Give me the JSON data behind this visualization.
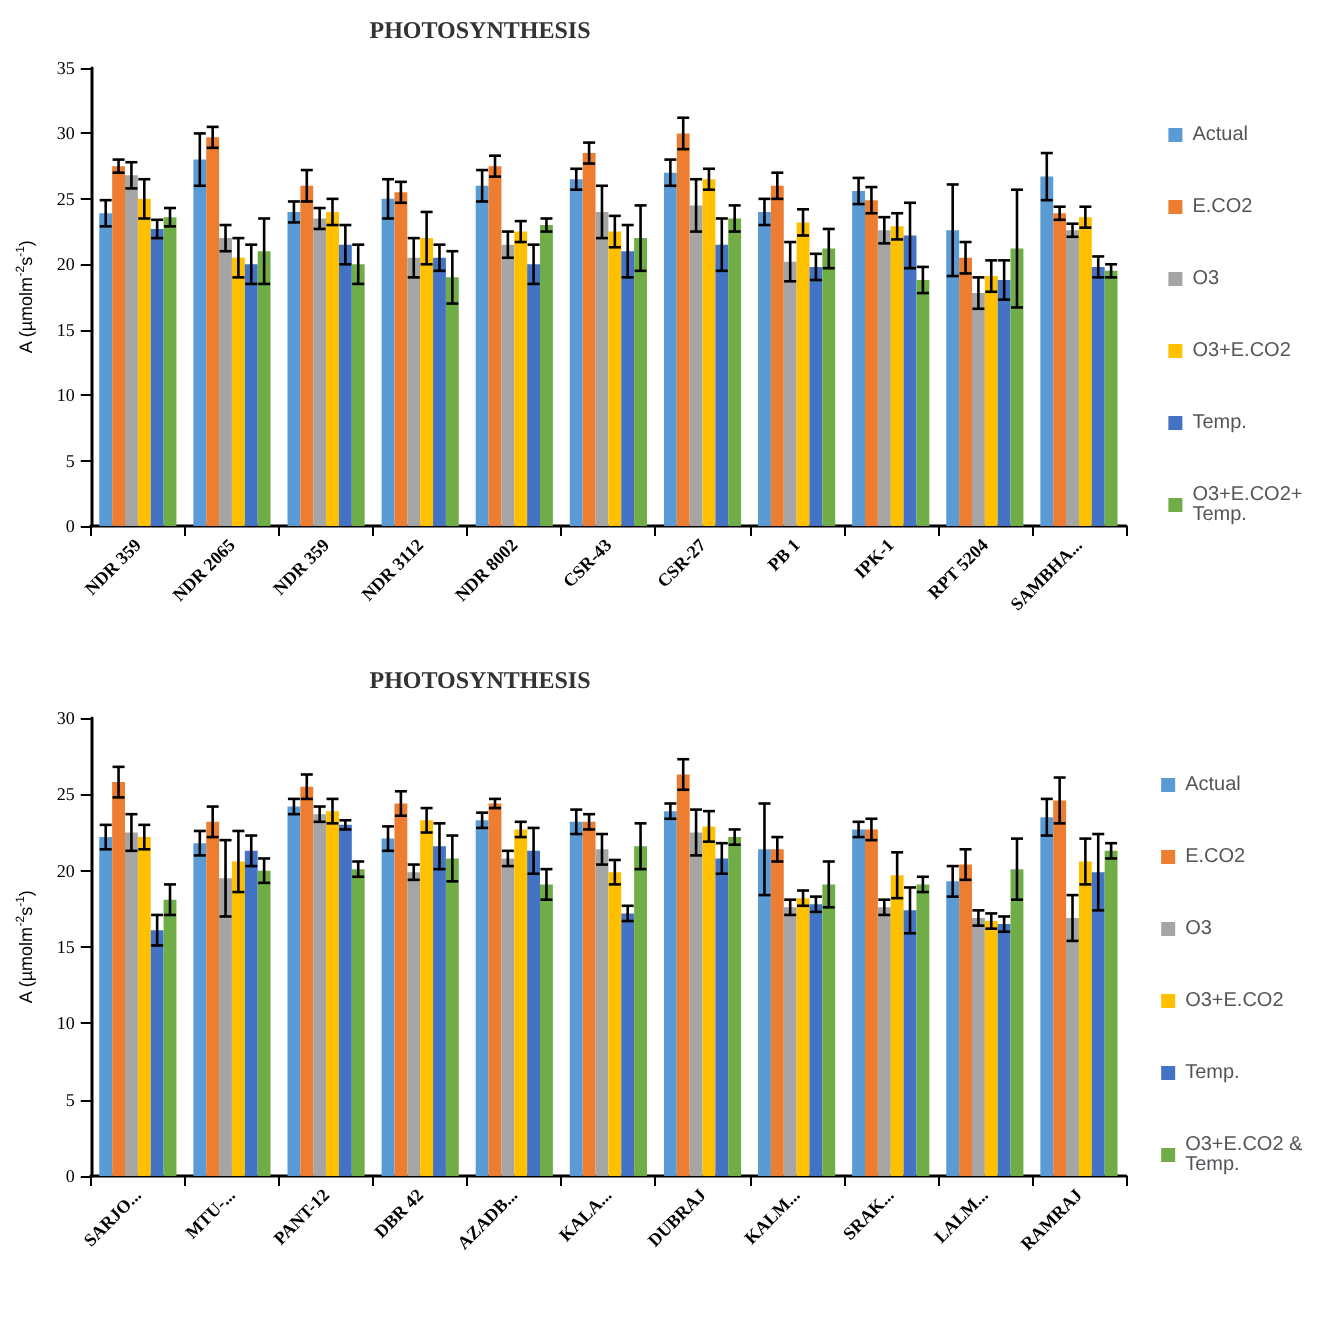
{
  "chart_data": [
    {
      "type": "bar",
      "title": "PHOTOSYNTHESIS",
      "ylabel": "A (µmolm$^{-2}$s$^{-1}$)",
      "categories": [
        "NDR 359",
        "NDR 2065",
        "NDR 359",
        "NDR 3112",
        "NDR 8002",
        "CSR-43",
        "CSR-27",
        "PB 1",
        "IPK-1",
        "RPT 5204",
        "SAMBHA..."
      ],
      "ylim": [
        0,
        35
      ],
      "yticks": [
        0,
        5,
        10,
        15,
        20,
        25,
        30,
        35
      ],
      "grid": false,
      "legend": "right",
      "series": [
        {
          "name": "Actual",
          "color": "#5b9bd5",
          "values": [
            23.9,
            28,
            24,
            25,
            26,
            26.5,
            27,
            24,
            25.6,
            22.6,
            26.7
          ],
          "errors": [
            1,
            2,
            0.8,
            1.5,
            1.2,
            0.8,
            1,
            1,
            1,
            3.5,
            1.8
          ]
        },
        {
          "name": "E.CO2",
          "color": "#ed7d31",
          "values": [
            27.5,
            29.7,
            26,
            25.5,
            27.5,
            28.5,
            30,
            26,
            24.9,
            20.5,
            23.9
          ],
          "errors": [
            0.5,
            0.8,
            1.2,
            0.8,
            0.8,
            0.8,
            1.2,
            1,
            1,
            1.2,
            0.5
          ]
        },
        {
          "name": "O3",
          "color": "#a5a5a5",
          "values": [
            26.8,
            22,
            23.5,
            20.5,
            21.5,
            24,
            24.5,
            20.2,
            22.6,
            17.8,
            22.6
          ],
          "errors": [
            1,
            1,
            0.8,
            1.5,
            1,
            2,
            2,
            1.5,
            1,
            1.2,
            0.5
          ]
        },
        {
          "name": "O3+E.CO2",
          "color": "#ffc000",
          "values": [
            25,
            20.5,
            24,
            22,
            22.5,
            22.5,
            26.5,
            23.2,
            22.9,
            19.1,
            23.6
          ],
          "errors": [
            1.5,
            1.5,
            1,
            2,
            0.8,
            1.2,
            0.8,
            1,
            1,
            1.2,
            0.8
          ]
        },
        {
          "name": "Temp.",
          "color": "#4472c4",
          "values": [
            22.7,
            20,
            21.5,
            20.5,
            20,
            21,
            21.5,
            19.8,
            22.2,
            18.8,
            19.8
          ],
          "errors": [
            0.7,
            1.5,
            1.5,
            1,
            1.5,
            2,
            2,
            1,
            2.5,
            1.5,
            0.8
          ]
        },
        {
          "name": "O3+E.CO2+ Temp.",
          "color": "#70ad47",
          "values": [
            23.6,
            21,
            20,
            19,
            23,
            22,
            23.5,
            21.2,
            18.8,
            21.2,
            19.5
          ],
          "errors": [
            0.7,
            2.5,
            1.5,
            2,
            0.5,
            2.5,
            1,
            1.5,
            1,
            4.5,
            0.5
          ]
        }
      ]
    },
    {
      "type": "bar",
      "title": "PHOTOSYNTHESIS",
      "ylabel": "A (µmolm$^{-2}$s$^{-1}$)",
      "categories": [
        "SARJO...",
        "MTU-...",
        "PANT-12",
        "DBR 42",
        "AZADB...",
        "KALA...",
        "DUBRAJ",
        "KALM...",
        "SRAK...",
        "LALM...",
        "RAMRAJ"
      ],
      "ylim": [
        0,
        30
      ],
      "yticks": [
        0,
        5,
        10,
        15,
        20,
        25,
        30
      ],
      "grid": false,
      "legend": "right",
      "series": [
        {
          "name": "Actual",
          "color": "#5b9bd5",
          "values": [
            22.2,
            21.8,
            24.2,
            22.1,
            23.3,
            23.2,
            23.9,
            21.4,
            22.7,
            19.3,
            23.5
          ],
          "errors": [
            0.8,
            0.8,
            0.5,
            0.8,
            0.5,
            0.8,
            0.5,
            3,
            0.5,
            1,
            1.2
          ]
        },
        {
          "name": "E.CO2",
          "color": "#ed7d31",
          "values": [
            25.8,
            23.2,
            25.5,
            24.4,
            24.4,
            23.2,
            26.3,
            21.4,
            22.7,
            20.4,
            24.6
          ],
          "errors": [
            1,
            1,
            0.8,
            0.8,
            0.3,
            0.5,
            1,
            0.8,
            0.7,
            1,
            1.5
          ]
        },
        {
          "name": "O3",
          "color": "#a5a5a5",
          "values": [
            22.5,
            19.5,
            23.7,
            19.9,
            20.8,
            21.4,
            22.5,
            17.6,
            17.6,
            16.9,
            16.9
          ],
          "errors": [
            1.2,
            2.5,
            0.5,
            0.5,
            0.5,
            1,
            1.5,
            0.5,
            0.5,
            0.5,
            1.5
          ]
        },
        {
          "name": "O3+E.CO2",
          "color": "#ffc000",
          "values": [
            22.2,
            20.6,
            23.9,
            23.3,
            22.7,
            19.9,
            22.9,
            18.2,
            19.7,
            16.7,
            20.6
          ],
          "errors": [
            0.8,
            2,
            0.8,
            0.8,
            0.5,
            0.8,
            1,
            0.5,
            1.5,
            0.5,
            1.5
          ]
        },
        {
          "name": "Temp.",
          "color": "#4472c4",
          "values": [
            16.1,
            21.3,
            23,
            21.6,
            21.3,
            17.2,
            20.8,
            17.8,
            17.4,
            16.5,
            19.9
          ],
          "errors": [
            1,
            1,
            0.3,
            1.5,
            1.5,
            0.5,
            1,
            0.5,
            1.5,
            0.5,
            2.5
          ]
        },
        {
          "name": "O3+E.CO2 & Temp.",
          "color": "#70ad47",
          "values": [
            18.1,
            20,
            20.1,
            20.8,
            19.1,
            21.6,
            22.2,
            19.1,
            19.1,
            20.1,
            21.3
          ],
          "errors": [
            1,
            0.8,
            0.5,
            1.5,
            1,
            1.5,
            0.5,
            1.5,
            0.5,
            2,
            0.5
          ]
        }
      ]
    }
  ]
}
